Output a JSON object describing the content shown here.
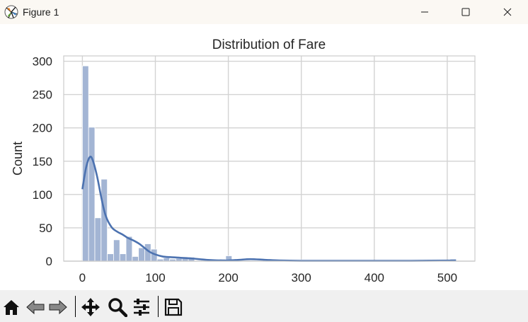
{
  "window": {
    "title": "Figure 1",
    "controls": [
      "minimize",
      "maximize",
      "close"
    ]
  },
  "toolbar": {
    "buttons": [
      "home-icon",
      "back-arrow-icon",
      "forward-arrow-icon",
      "pan-move-icon",
      "zoom-magnifier-icon",
      "configure-subplots-icon",
      "save-floppy-icon"
    ]
  },
  "colors": {
    "bar_fill": "#a3b5d4",
    "bar_edge": "#ffffff",
    "kde_line": "#4c72b0",
    "grid": "#d3d3d3",
    "axes_edge": "#cccccc",
    "text": "#262626"
  },
  "chart_data": {
    "type": "bar",
    "title": "Distribution of Fare",
    "xlabel": "",
    "ylabel": "Count",
    "xlim": [
      -25.6,
      537.9
    ],
    "ylim": [
      0,
      308
    ],
    "xticks": [
      0,
      100,
      200,
      300,
      400,
      500
    ],
    "yticks": [
      0,
      50,
      100,
      150,
      200,
      250,
      300
    ],
    "grid": true,
    "bin_width": 8.54,
    "bins_start": 0,
    "values": [
      293,
      201,
      65,
      123,
      11,
      32,
      11,
      37,
      7,
      20,
      26,
      18,
      3,
      5,
      3,
      4,
      4,
      6,
      1,
      0,
      2,
      1,
      3,
      8,
      0,
      0,
      0,
      1,
      1,
      0,
      0,
      0,
      0,
      0,
      1,
      2,
      0,
      0,
      0,
      0,
      0,
      1,
      1,
      0,
      0,
      0,
      0,
      0,
      0,
      0,
      0,
      0,
      0,
      0,
      0,
      0,
      0,
      0,
      0,
      3
    ],
    "kde": {
      "x": [
        0,
        5,
        10,
        14,
        20,
        26,
        32,
        40,
        48,
        55,
        62,
        70,
        78,
        85,
        92,
        100,
        110,
        120,
        135,
        150,
        170,
        190,
        200,
        215,
        230,
        250,
        270,
        300,
        350,
        400,
        450,
        512
      ],
      "y": [
        108,
        140,
        156,
        152,
        128,
        95,
        68,
        51,
        44,
        40,
        35,
        31,
        26,
        20,
        14,
        10,
        7,
        6,
        5,
        4,
        2,
        1,
        1,
        2,
        3,
        2,
        1,
        0.5,
        0.5,
        0.5,
        0.5,
        1
      ]
    }
  }
}
